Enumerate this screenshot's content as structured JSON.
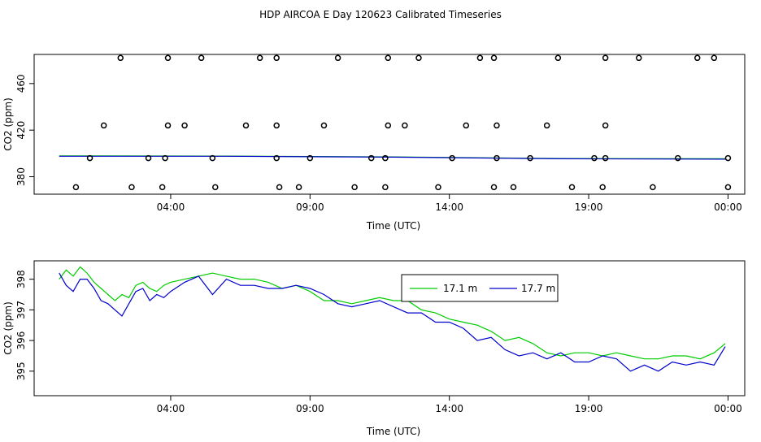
{
  "title": "HDP AIRCOA E  Day 120623  Calibrated Timeseries",
  "chart_data": [
    {
      "type": "scatter",
      "xlabel": "Time (UTC)",
      "ylabel": "CO2 (ppm)",
      "x_unit": "hours UTC",
      "xlim": [
        -0.9,
        24.6
      ],
      "ylim": [
        365,
        485
      ],
      "x_ticks": [
        {
          "value": 4,
          "label": "04:00"
        },
        {
          "value": 9,
          "label": "09:00"
        },
        {
          "value": 14,
          "label": "14:00"
        },
        {
          "value": 19,
          "label": "19:00"
        },
        {
          "value": 24,
          "label": "00:00"
        }
      ],
      "y_ticks": [
        {
          "value": 380,
          "label": "380"
        },
        {
          "value": 420,
          "label": "420"
        },
        {
          "value": 460,
          "label": "460"
        }
      ],
      "calibration_points": {
        "x": [
          2.2,
          3.9,
          5.1,
          7.2,
          7.8,
          10.0,
          11.8,
          12.9,
          15.1,
          15.6,
          17.9,
          19.6,
          20.8,
          22.9,
          23.5,
          1.6,
          3.9,
          4.5,
          6.7,
          7.8,
          9.5,
          11.8,
          12.4,
          14.6,
          15.7,
          17.5,
          19.6,
          0.6,
          2.6,
          3.7,
          5.6,
          7.9,
          8.6,
          10.6,
          11.7,
          13.6,
          15.6,
          16.3,
          18.4,
          19.5,
          21.3,
          24.0
        ],
        "y": [
          482,
          482,
          482,
          482,
          482,
          482,
          482,
          482,
          482,
          482,
          482,
          482,
          482,
          482,
          482,
          424,
          424,
          424,
          424,
          424,
          424,
          424,
          424,
          424,
          424,
          424,
          424,
          371,
          371,
          371,
          371,
          371,
          371,
          371,
          371,
          371,
          371,
          371,
          371,
          371,
          371,
          371
        ]
      },
      "reference_points": {
        "x": [
          1.1,
          3.2,
          3.8,
          5.5,
          7.8,
          9.0,
          11.2,
          11.7,
          14.1,
          15.7,
          16.9,
          19.2,
          19.6,
          22.2,
          24.0
        ],
        "y": [
          396,
          396,
          396,
          396,
          396,
          396,
          396,
          396,
          396,
          396,
          396,
          396,
          396,
          396,
          396
        ]
      },
      "series": [
        {
          "name": "",
          "color": "#00cc00",
          "x": [
            0,
            6,
            12,
            18,
            23.9
          ],
          "y": [
            397.9,
            397.7,
            397.0,
            395.6,
            395.4
          ]
        },
        {
          "name": "",
          "color": "#0000cc",
          "x": [
            0,
            6,
            12,
            18,
            23.9
          ],
          "y": [
            397.6,
            397.6,
            396.8,
            395.4,
            395.1
          ]
        }
      ]
    },
    {
      "type": "line",
      "xlabel": "Time (UTC)",
      "ylabel": "CO2 (ppm)",
      "x_unit": "hours UTC",
      "xlim": [
        -0.9,
        24.6
      ],
      "ylim": [
        394.2,
        398.6
      ],
      "x_ticks": [
        {
          "value": 4,
          "label": "04:00"
        },
        {
          "value": 9,
          "label": "09:00"
        },
        {
          "value": 14,
          "label": "14:00"
        },
        {
          "value": 19,
          "label": "19:00"
        },
        {
          "value": 24,
          "label": "00:00"
        }
      ],
      "y_ticks": [
        {
          "value": 395,
          "label": "395"
        },
        {
          "value": 396,
          "label": "396"
        },
        {
          "value": 397,
          "label": "397"
        },
        {
          "value": 398,
          "label": "398"
        }
      ],
      "legend_position": "top-right",
      "series": [
        {
          "name": "17.1 m",
          "color": "#00cc00",
          "x": [
            0.0,
            0.25,
            0.5,
            0.75,
            1.0,
            1.25,
            1.5,
            1.75,
            2.0,
            2.25,
            2.5,
            2.75,
            3.0,
            3.25,
            3.5,
            3.75,
            4.0,
            4.5,
            5.0,
            5.5,
            6.0,
            6.5,
            7.0,
            7.5,
            8.0,
            8.5,
            9.0,
            9.5,
            10.0,
            10.5,
            11.0,
            11.5,
            12.0,
            12.5,
            13.0,
            13.5,
            14.0,
            14.5,
            15.0,
            15.5,
            16.0,
            16.5,
            17.0,
            17.5,
            18.0,
            18.5,
            19.0,
            19.5,
            20.0,
            20.5,
            21.0,
            21.5,
            22.0,
            22.5,
            23.0,
            23.5,
            23.9
          ],
          "y": [
            398.0,
            398.3,
            398.1,
            398.4,
            398.2,
            397.9,
            397.7,
            397.5,
            397.3,
            397.5,
            397.4,
            397.8,
            397.9,
            397.7,
            397.6,
            397.8,
            397.9,
            398.0,
            398.1,
            398.2,
            398.1,
            398.0,
            398.0,
            397.9,
            397.7,
            397.8,
            397.6,
            397.3,
            397.3,
            397.2,
            397.3,
            397.4,
            397.3,
            397.3,
            397.0,
            396.9,
            396.7,
            396.6,
            396.5,
            396.3,
            396.0,
            396.1,
            395.9,
            395.6,
            395.5,
            395.6,
            395.6,
            395.5,
            395.6,
            395.5,
            395.4,
            395.4,
            395.5,
            395.5,
            395.4,
            395.6,
            395.9
          ]
        },
        {
          "name": "17.7 m",
          "color": "#0000cc",
          "x": [
            0.0,
            0.25,
            0.5,
            0.75,
            1.0,
            1.25,
            1.5,
            1.75,
            2.0,
            2.25,
            2.5,
            2.75,
            3.0,
            3.25,
            3.5,
            3.75,
            4.0,
            4.5,
            5.0,
            5.5,
            6.0,
            6.5,
            7.0,
            7.5,
            8.0,
            8.5,
            9.0,
            9.5,
            10.0,
            10.5,
            11.0,
            11.5,
            12.0,
            12.5,
            13.0,
            13.5,
            14.0,
            14.5,
            15.0,
            15.5,
            16.0,
            16.5,
            17.0,
            17.5,
            18.0,
            18.5,
            19.0,
            19.5,
            20.0,
            20.5,
            21.0,
            21.5,
            22.0,
            22.5,
            23.0,
            23.5,
            23.9
          ],
          "y": [
            398.2,
            397.8,
            397.6,
            398.0,
            398.0,
            397.7,
            397.3,
            397.2,
            397.0,
            396.8,
            397.2,
            397.6,
            397.7,
            397.3,
            397.5,
            397.4,
            397.6,
            397.9,
            398.1,
            397.5,
            398.0,
            397.8,
            397.8,
            397.7,
            397.7,
            397.8,
            397.7,
            397.5,
            397.2,
            397.1,
            397.2,
            397.3,
            397.1,
            396.9,
            396.9,
            396.6,
            396.6,
            396.4,
            396.0,
            396.1,
            395.7,
            395.5,
            395.6,
            395.4,
            395.6,
            395.3,
            395.3,
            395.5,
            395.4,
            395.0,
            395.2,
            395.0,
            395.3,
            395.2,
            395.3,
            395.2,
            395.8
          ]
        }
      ]
    }
  ]
}
